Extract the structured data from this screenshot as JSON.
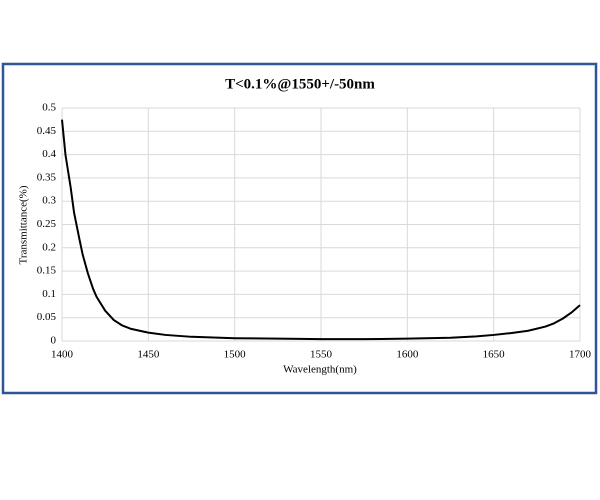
{
  "chart_data": {
    "type": "line",
    "title": "T<0.1%@1550+/-50nm",
    "x_label": "Wavelength(nm)",
    "y_label": "Transmittance(%)",
    "x": [
      1400,
      1402,
      1405,
      1407,
      1410,
      1412,
      1415,
      1418,
      1420,
      1425,
      1430,
      1435,
      1440,
      1450,
      1460,
      1475,
      1500,
      1525,
      1550,
      1575,
      1600,
      1625,
      1640,
      1650,
      1660,
      1670,
      1680,
      1685,
      1690,
      1695,
      1700
    ],
    "values": [
      0.475,
      0.4,
      0.33,
      0.275,
      0.22,
      0.185,
      0.145,
      0.112,
      0.095,
      0.065,
      0.045,
      0.033,
      0.026,
      0.018,
      0.013,
      0.009,
      0.006,
      0.005,
      0.004,
      0.004,
      0.005,
      0.007,
      0.01,
      0.013,
      0.017,
      0.022,
      0.031,
      0.038,
      0.048,
      0.061,
      0.077
    ],
    "color": "#000000",
    "xlim": [
      1400,
      1700
    ],
    "xticks": [
      1400,
      1450,
      1500,
      1550,
      1600,
      1650,
      1700
    ],
    "ylim": [
      0,
      0.5
    ],
    "yticks": [
      0,
      0.05,
      0.1,
      0.15,
      0.2,
      0.25,
      0.3,
      0.35,
      0.4,
      0.45,
      0.5
    ],
    "grid": true
  }
}
